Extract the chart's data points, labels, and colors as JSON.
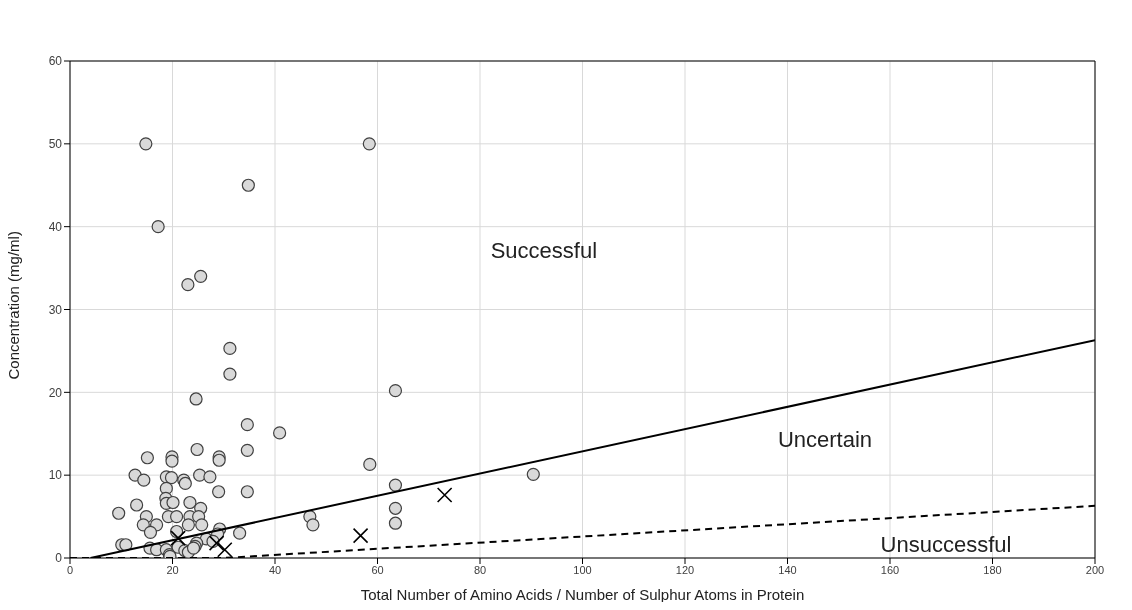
{
  "chart_data": {
    "type": "scatter",
    "xlabel": "Total Number of Amino Acids / Number of Sulphur Atoms in Protein",
    "ylabel": "Concentration (mg/ml)",
    "xlim": [
      0,
      200
    ],
    "xticks": [
      0,
      20,
      40,
      60,
      80,
      100,
      120,
      140,
      160,
      180,
      200
    ],
    "ylim": [
      0,
      60
    ],
    "yticks": [
      0,
      10,
      20,
      30,
      40,
      50,
      60
    ],
    "grid": true,
    "legend": false,
    "annotations": [
      "Successful",
      "Uncertain",
      "Unsuccessful"
    ],
    "series": [
      {
        "marker": "circle",
        "color": "#d9d9d9",
        "x": [
          14.8,
          58.4,
          34.8,
          17.2,
          23.0,
          25.5,
          31.2,
          31.2,
          24.6,
          34.6,
          34.6,
          40.9,
          24.8,
          15.1,
          19.9,
          19.9,
          29.1,
          29.1,
          12.7,
          25.3,
          27.3,
          14.4,
          18.8,
          19.8,
          22.2,
          22.5,
          18.8,
          29.0,
          34.6,
          18.7,
          18.8,
          20.1,
          13.0,
          23.4,
          25.5,
          9.5,
          14.9,
          19.2,
          20.8,
          23.4,
          25.1,
          14.3,
          16.9,
          23.1,
          25.7,
          15.7,
          20.8,
          29.2,
          28.8,
          33.1,
          26.6,
          27.9,
          24.7,
          24.4,
          10.1,
          10.9,
          15.6,
          16.9,
          18.8,
          19.4,
          21.1,
          22.4,
          23.1,
          24.1,
          19.5,
          63.5,
          58.5,
          63.5,
          63.5,
          63.5,
          90.4,
          46.8,
          47.4
        ],
        "values": [
          50,
          50,
          45,
          40,
          33,
          34,
          25.3,
          22.2,
          19.2,
          16.1,
          13.0,
          15.1,
          13.1,
          12.1,
          12.2,
          11.7,
          12.2,
          11.8,
          10.0,
          10.0,
          9.8,
          9.4,
          9.8,
          9.7,
          9.4,
          9.0,
          8.4,
          8.0,
          8.0,
          7.2,
          6.6,
          6.7,
          6.4,
          6.7,
          6.0,
          5.4,
          5.0,
          5.0,
          5.0,
          5.0,
          5.0,
          4.0,
          4.0,
          4.0,
          4.0,
          3.1,
          3.2,
          3.5,
          2.9,
          3.0,
          2.3,
          2.0,
          1.8,
          1.4,
          1.6,
          1.6,
          1.2,
          1.0,
          1.0,
          0.4,
          1.3,
          0.9,
          0.7,
          1.2,
          0.2,
          20.2,
          11.3,
          8.8,
          6.0,
          4.2,
          10.1,
          5.0,
          4.0
        ]
      },
      {
        "marker": "cross",
        "color": "#000000",
        "x": [
          21.1,
          28.6,
          30.2,
          56.7,
          73.1
        ],
        "values": [
          2.4,
          1.8,
          1.0,
          2.7,
          7.6
        ]
      },
      {
        "type": "line",
        "line_style": "solid",
        "color": "#000000",
        "x": [
          4,
          200
        ],
        "values": [
          0,
          26.3
        ]
      },
      {
        "type": "line",
        "line_style": "dashed",
        "color": "#000000",
        "x": [
          0,
          30,
          200
        ],
        "values": [
          0,
          0,
          6.3
        ]
      }
    ]
  }
}
